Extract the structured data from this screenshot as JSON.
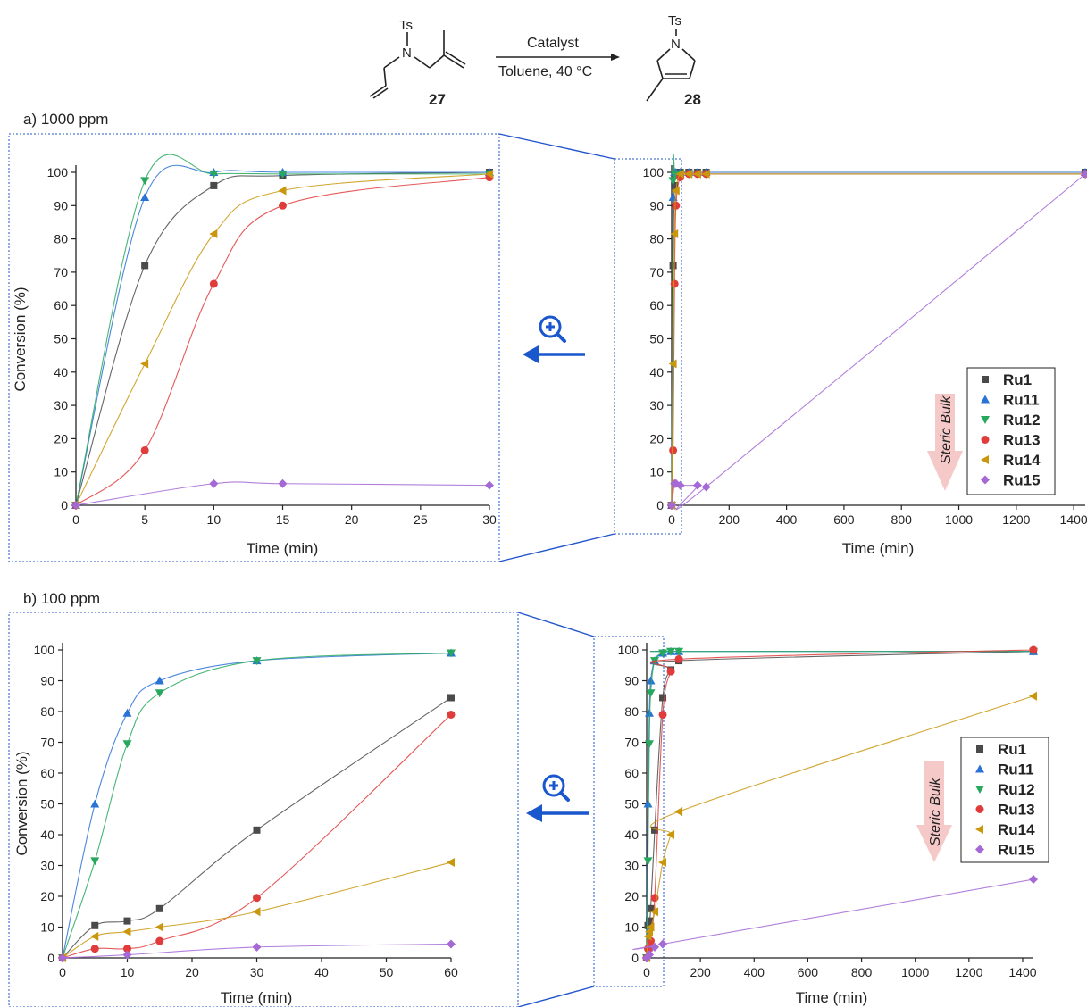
{
  "scheme": {
    "reactant_label": "27",
    "product_label": "28",
    "protecting_group": "Ts",
    "n_label": "N",
    "arrow_top": "Catalyst",
    "arrow_bottom": "Toluene, 40 °C"
  },
  "colors": {
    "Ru1": "#4a4a4a",
    "Ru11": "#2a72d6",
    "Ru12": "#27a85e",
    "Ru13": "#e03c3c",
    "Ru14": "#c9960c",
    "Ru15": "#a569d6",
    "zoom_frame": "#2255cc",
    "zoom_icon": "#1a56cc"
  },
  "steric_label": "Steric Bulk",
  "chart_data": [
    {
      "id": "a_zoom",
      "panel_label": "a) 1000 ppm",
      "type": "scatter",
      "xlabel": "Time (min)",
      "ylabel": "Conversion (%)",
      "xlim": [
        0,
        30
      ],
      "ylim": [
        0,
        100
      ],
      "xticks": [
        "0",
        "5",
        "10",
        "15",
        "20",
        "25",
        "30"
      ],
      "yticks": [
        "0",
        "10",
        "20",
        "30",
        "40",
        "50",
        "60",
        "70",
        "80",
        "90",
        "100"
      ],
      "series": [
        {
          "name": "Ru1",
          "x": [
            0,
            5,
            10,
            15,
            30
          ],
          "y": [
            0,
            72,
            96,
            99,
            100
          ]
        },
        {
          "name": "Ru11",
          "x": [
            0,
            5,
            10,
            15,
            30
          ],
          "y": [
            0,
            92.5,
            100,
            100,
            100
          ]
        },
        {
          "name": "Ru12",
          "x": [
            0,
            5,
            10,
            15,
            30
          ],
          "y": [
            0,
            97.5,
            99.5,
            99.5,
            99.5
          ]
        },
        {
          "name": "Ru13",
          "x": [
            0,
            5,
            10,
            15,
            30
          ],
          "y": [
            0,
            16.5,
            66.5,
            90,
            98.5
          ]
        },
        {
          "name": "Ru14",
          "x": [
            0,
            5,
            10,
            15,
            30
          ],
          "y": [
            0,
            42.5,
            81.5,
            94.5,
            99.5
          ]
        },
        {
          "name": "Ru15",
          "x": [
            0,
            10,
            15,
            30
          ],
          "y": [
            0,
            6.5,
            6.5,
            6
          ]
        }
      ]
    },
    {
      "id": "a_full",
      "panel_label": "",
      "type": "scatter",
      "xlabel": "Time (min)",
      "ylabel": "",
      "xlim": [
        0,
        1440
      ],
      "ylim": [
        0,
        100
      ],
      "xticks": [
        "0",
        "200",
        "400",
        "600",
        "800",
        "1000",
        "1200",
        "1400"
      ],
      "yticks": [
        "0",
        "10",
        "20",
        "30",
        "40",
        "50",
        "60",
        "70",
        "80",
        "90",
        "100"
      ],
      "legend": [
        "Ru1",
        "Ru11",
        "Ru12",
        "Ru13",
        "Ru14",
        "Ru15"
      ],
      "series": [
        {
          "name": "Ru1",
          "x": [
            0,
            5,
            10,
            15,
            30,
            60,
            90,
            120,
            1440
          ],
          "y": [
            0,
            72,
            96,
            99,
            100,
            100,
            100,
            100,
            100
          ]
        },
        {
          "name": "Ru11",
          "x": [
            0,
            5,
            10,
            15,
            30,
            60,
            90,
            120,
            1440
          ],
          "y": [
            0,
            92.5,
            100,
            100,
            100,
            100,
            100,
            100,
            100
          ]
        },
        {
          "name": "Ru12",
          "x": [
            0,
            5,
            10,
            15,
            30,
            60,
            90,
            120,
            1440
          ],
          "y": [
            0,
            97.5,
            99.5,
            99.5,
            99.5,
            99.5,
            99.5,
            99.5,
            99.5
          ]
        },
        {
          "name": "Ru13",
          "x": [
            0,
            5,
            10,
            15,
            30,
            60,
            90,
            120,
            1440
          ],
          "y": [
            0,
            16.5,
            66.5,
            90,
            98.5,
            99.5,
            99.5,
            99.5,
            99.5
          ]
        },
        {
          "name": "Ru14",
          "x": [
            0,
            5,
            10,
            15,
            30,
            60,
            90,
            120,
            1440
          ],
          "y": [
            0,
            42.5,
            81.5,
            94.5,
            99.5,
            99.5,
            99.5,
            99.5,
            99.5
          ]
        },
        {
          "name": "Ru15",
          "x": [
            0,
            10,
            15,
            30,
            90,
            120,
            1440
          ],
          "y": [
            0,
            6.5,
            6.5,
            6,
            6,
            5.5,
            99.5
          ]
        }
      ]
    },
    {
      "id": "b_zoom",
      "panel_label": "b) 100 ppm",
      "type": "scatter",
      "xlabel": "Time (min)",
      "ylabel": "Conversion (%)",
      "xlim": [
        0,
        60
      ],
      "ylim": [
        0,
        100
      ],
      "xticks": [
        "0",
        "10",
        "20",
        "30",
        "40",
        "50",
        "60"
      ],
      "yticks": [
        "0",
        "10",
        "20",
        "30",
        "40",
        "50",
        "60",
        "70",
        "80",
        "90",
        "100"
      ],
      "series": [
        {
          "name": "Ru1",
          "x": [
            0,
            5,
            10,
            15,
            30,
            60
          ],
          "y": [
            0,
            10.5,
            12,
            16,
            41.5,
            84.5
          ]
        },
        {
          "name": "Ru11",
          "x": [
            0,
            5,
            10,
            15,
            30,
            60
          ],
          "y": [
            0,
            50,
            79.5,
            90,
            96.5,
            99
          ]
        },
        {
          "name": "Ru12",
          "x": [
            0,
            5,
            10,
            15,
            30,
            60
          ],
          "y": [
            0,
            31.5,
            69.5,
            86,
            96.5,
            99
          ]
        },
        {
          "name": "Ru13",
          "x": [
            0,
            5,
            10,
            15,
            30,
            60
          ],
          "y": [
            0,
            3,
            3,
            5.5,
            19.5,
            79
          ]
        },
        {
          "name": "Ru14",
          "x": [
            0,
            5,
            10,
            15,
            30,
            60
          ],
          "y": [
            0,
            7,
            8.5,
            10,
            15,
            31
          ]
        },
        {
          "name": "Ru15",
          "x": [
            0,
            10,
            30,
            60
          ],
          "y": [
            0,
            1,
            3.5,
            4.5
          ]
        }
      ]
    },
    {
      "id": "b_full",
      "panel_label": "",
      "type": "scatter",
      "xlabel": "Time (min)",
      "ylabel": "",
      "xlim": [
        0,
        1440
      ],
      "ylim": [
        0,
        100
      ],
      "xticks": [
        "0",
        "200",
        "400",
        "600",
        "800",
        "1000",
        "1200",
        "1400"
      ],
      "yticks": [
        "0",
        "10",
        "20",
        "30",
        "40",
        "50",
        "60",
        "70",
        "80",
        "90",
        "100"
      ],
      "legend": [
        "Ru1",
        "Ru11",
        "Ru12",
        "Ru13",
        "Ru14",
        "Ru15"
      ],
      "series": [
        {
          "name": "Ru1",
          "x": [
            0,
            5,
            10,
            15,
            30,
            60,
            90,
            120,
            1440
          ],
          "y": [
            0,
            10.5,
            12,
            16,
            41.5,
            84.5,
            93.5,
            96.5,
            99.5
          ]
        },
        {
          "name": "Ru11",
          "x": [
            0,
            5,
            10,
            15,
            30,
            60,
            90,
            120,
            1440
          ],
          "y": [
            0,
            50,
            79.5,
            90,
            96.5,
            99,
            99.5,
            99.5,
            99.5
          ]
        },
        {
          "name": "Ru12",
          "x": [
            0,
            5,
            10,
            15,
            30,
            60,
            90,
            120,
            1440
          ],
          "y": [
            0,
            31.5,
            69.5,
            86,
            96.5,
            99,
            99.5,
            99.5,
            99.5
          ]
        },
        {
          "name": "Ru13",
          "x": [
            0,
            5,
            10,
            15,
            30,
            60,
            90,
            120,
            1440
          ],
          "y": [
            0,
            3,
            3,
            5.5,
            19.5,
            79,
            93,
            97,
            100
          ]
        },
        {
          "name": "Ru14",
          "x": [
            0,
            5,
            10,
            15,
            30,
            60,
            90,
            120,
            1440
          ],
          "y": [
            0,
            7,
            8.5,
            10,
            15,
            31,
            40,
            47.5,
            85
          ]
        },
        {
          "name": "Ru15",
          "x": [
            0,
            10,
            30,
            60,
            1440
          ],
          "y": [
            0,
            1,
            3.5,
            4.5,
            25.5
          ]
        }
      ]
    }
  ]
}
